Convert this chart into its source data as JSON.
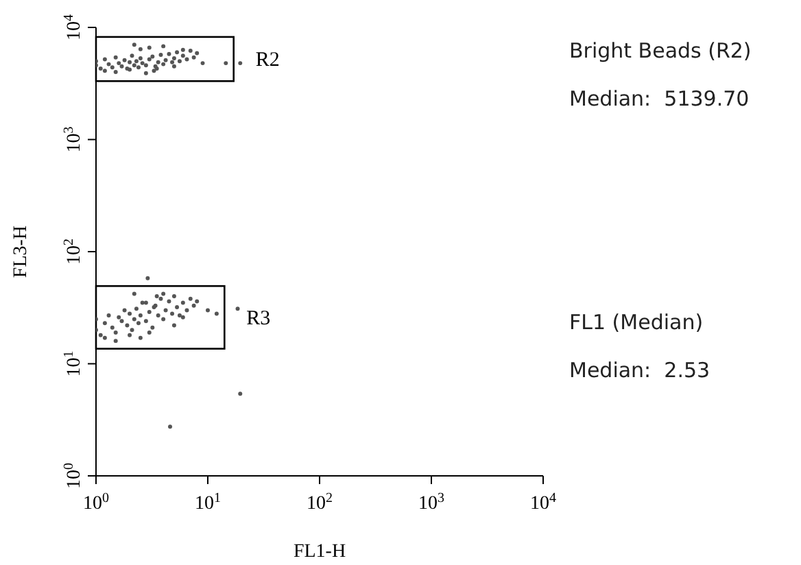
{
  "chart_data": {
    "type": "scatter",
    "xlabel": "FL1-H",
    "ylabel": "FL3-H",
    "log": "xy",
    "grid": false,
    "legend": false,
    "marker": "circle",
    "xlim": [
      1,
      10000
    ],
    "ylim": [
      1,
      10000
    ],
    "xticks": [
      {
        "value": 1,
        "label": "10$^{0}$"
      },
      {
        "value": 10,
        "label": "10$^{1}$"
      },
      {
        "value": 100,
        "label": "10$^{2}$"
      },
      {
        "value": 1000,
        "label": "10$^{3}$"
      },
      {
        "value": 10000,
        "label": "10$^{4}$"
      }
    ],
    "yticks": [
      {
        "value": 1,
        "label": "10$^{0}$"
      },
      {
        "value": 10,
        "label": "10$^{1}$"
      },
      {
        "value": 100,
        "label": "10$^{2}$"
      },
      {
        "value": 1000,
        "label": "10$^{3}$"
      },
      {
        "value": 10000,
        "label": "10$^{4}$"
      }
    ],
    "series": [
      {
        "color": "#555555",
        "x": [
          1,
          1,
          1.1,
          1.2,
          1.3,
          1.4,
          1.5,
          1.6,
          1.7,
          1.8,
          1.9,
          2,
          2.1,
          2.2,
          2.3,
          2.4,
          2.5,
          2.6,
          2.8,
          3,
          3.2,
          3.4,
          3.6,
          3.8,
          4,
          4.2,
          4.5,
          4.8,
          5,
          5.3,
          5.6,
          6,
          6.5,
          7,
          7.5,
          8,
          1.2,
          1.5,
          2,
          2.5,
          3,
          3.5,
          4,
          5,
          6,
          2.2,
          2.8,
          3.3,
          14.5,
          9
        ],
        "values": [
          4600,
          5000,
          4300,
          5200,
          4700,
          4400,
          5400,
          4800,
          4500,
          5100,
          4300,
          4900,
          5600,
          4600,
          5000,
          4400,
          5300,
          4800,
          4600,
          5200,
          5500,
          4500,
          4900,
          5700,
          4700,
          5100,
          5800,
          4900,
          5300,
          6000,
          5000,
          5600,
          5200,
          6200,
          5400,
          5900,
          4100,
          4000,
          4200,
          6400,
          6600,
          4300,
          6800,
          4500,
          6300,
          7000,
          3900,
          4100,
          4800,
          4800
        ]
      },
      {
        "color": "#555555",
        "x": [
          1,
          1,
          1.1,
          1.2,
          1.3,
          1.4,
          1.5,
          1.6,
          1.7,
          1.8,
          1.9,
          2,
          2.1,
          2.2,
          2.3,
          2.4,
          2.5,
          2.6,
          2.8,
          3,
          3.2,
          3.4,
          3.6,
          3.8,
          4,
          4.2,
          4.5,
          4.8,
          5,
          5.3,
          5.6,
          6,
          6.5,
          7,
          7.5,
          8,
          1.2,
          1.5,
          2,
          2.5,
          3,
          3.5,
          4,
          5,
          6,
          2.2,
          2.8,
          3.3,
          10,
          12
        ],
        "values": [
          20,
          25,
          18,
          23,
          27,
          21,
          19,
          26,
          24,
          30,
          22,
          28,
          20,
          25,
          31,
          23,
          27,
          35,
          24,
          29,
          21,
          33,
          27,
          38,
          25,
          30,
          36,
          28,
          40,
          32,
          27,
          35,
          30,
          38,
          33,
          36,
          17,
          16,
          18,
          17,
          19,
          40,
          42,
          22,
          26,
          42,
          35,
          32,
          30,
          28
        ]
      },
      {
        "color": "#555555",
        "x": [
          2.9,
          19.5,
          19.5,
          4.6,
          18.5
        ],
        "values": [
          58,
          4800,
          5.4,
          2.75,
          31
        ]
      }
    ],
    "annotations": [
      "R2",
      "R3",
      "Bright Beads (R2)",
      "Median:  5139.70",
      "FL1 (Median)",
      "Median:  2.53"
    ]
  }
}
